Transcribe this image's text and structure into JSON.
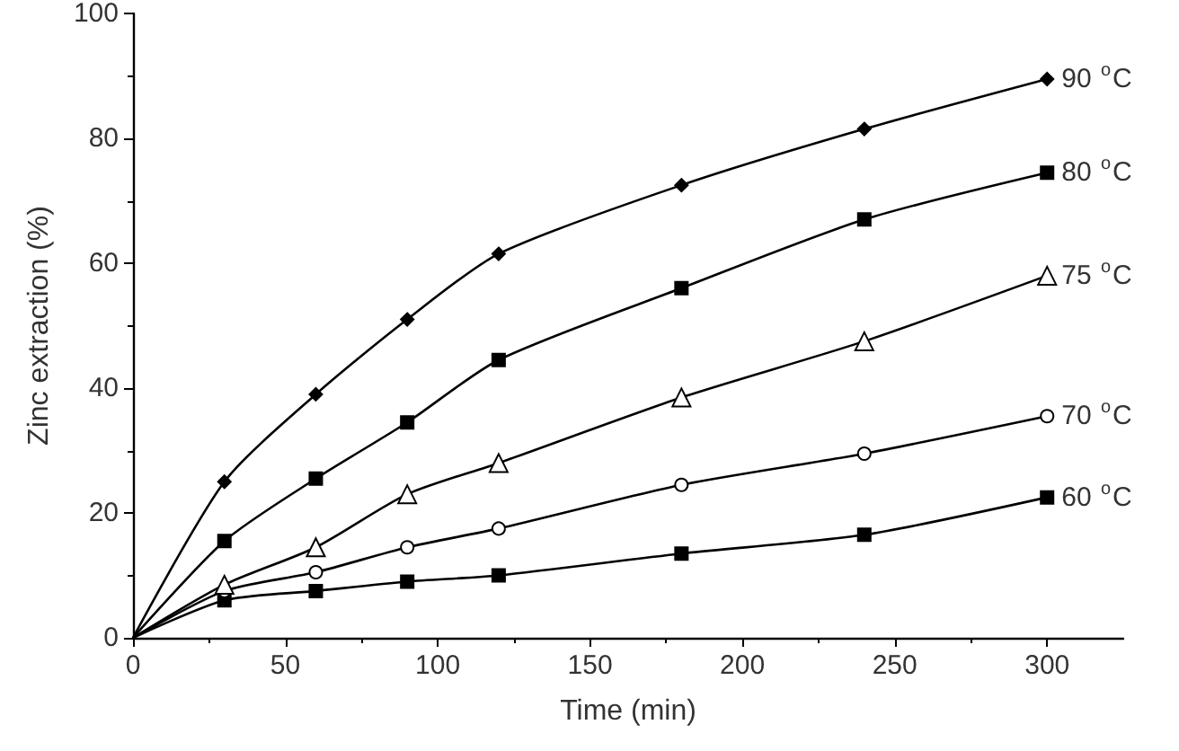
{
  "chart_data": {
    "type": "line",
    "xlabel": "Time (min)",
    "ylabel": "Zinc extraction (%)",
    "x": [
      0,
      30,
      60,
      90,
      120,
      180,
      240,
      300
    ],
    "xlim": [
      0,
      325
    ],
    "xticks": [
      0,
      50,
      100,
      150,
      200,
      250,
      300
    ],
    "ylim": [
      0,
      100
    ],
    "yticks": [
      0,
      20,
      40,
      60,
      80,
      100
    ],
    "grid": false,
    "legend": false,
    "line_style": "solid",
    "series": [
      {
        "name": "90 $^{o}$C",
        "color": "#000000",
        "marker": "diamond",
        "values": [
          0,
          25,
          39,
          51,
          61.5,
          72.5,
          81.5,
          89.5
        ]
      },
      {
        "name": "80 $^{o}$C",
        "color": "#000000",
        "marker": "square",
        "values": [
          0,
          15.5,
          25.5,
          34.5,
          44.5,
          56,
          67,
          74.5
        ]
      },
      {
        "name": "75 $^{o}$C",
        "color": "#000000",
        "marker": "triangle",
        "values": [
          0,
          8.5,
          14.5,
          23,
          28,
          38.5,
          47.5,
          58
        ]
      },
      {
        "name": "70 $^{o}$C",
        "color": "#000000",
        "marker": "circle",
        "values": [
          0,
          7.5,
          10.5,
          14.5,
          17.5,
          24.5,
          29.5,
          35.5
        ]
      },
      {
        "name": "60 $^{o}$C",
        "color": "#000000",
        "marker": "square",
        "values": [
          0,
          6,
          7.5,
          9,
          10,
          13.5,
          16.5,
          22.5
        ]
      }
    ]
  }
}
